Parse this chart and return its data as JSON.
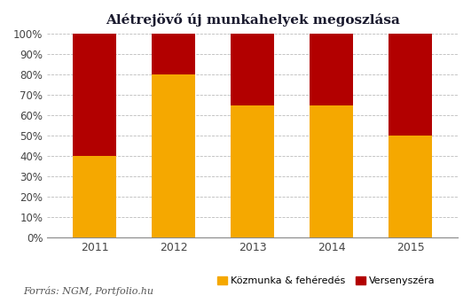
{
  "title": "Alétrejövő új munkahelyek megoszlása",
  "years": [
    "2011",
    "2012",
    "2013",
    "2014",
    "2015"
  ],
  "kozmunka": [
    0.4,
    0.8,
    0.65,
    0.65,
    0.5
  ],
  "versenyszfera": [
    0.6,
    0.2,
    0.35,
    0.35,
    0.5
  ],
  "color_kozmunka": "#F5A800",
  "color_versenyszfera": "#B20000",
  "legend_kozmunka": "Közmunka & fehéredés",
  "legend_versenyszfera": "Versenyszéra",
  "source_text": "Forrás: NGM, Portfolio.hu",
  "ylim": [
    0,
    1.0
  ],
  "yticks": [
    0.0,
    0.1,
    0.2,
    0.3,
    0.4,
    0.5,
    0.6,
    0.7,
    0.8,
    0.9,
    1.0
  ],
  "ytick_labels": [
    "0%",
    "10%",
    "20%",
    "30%",
    "40%",
    "50%",
    "60%",
    "70%",
    "80%",
    "90%",
    "100%"
  ],
  "background_color": "#FFFFFF",
  "bar_width": 0.55
}
